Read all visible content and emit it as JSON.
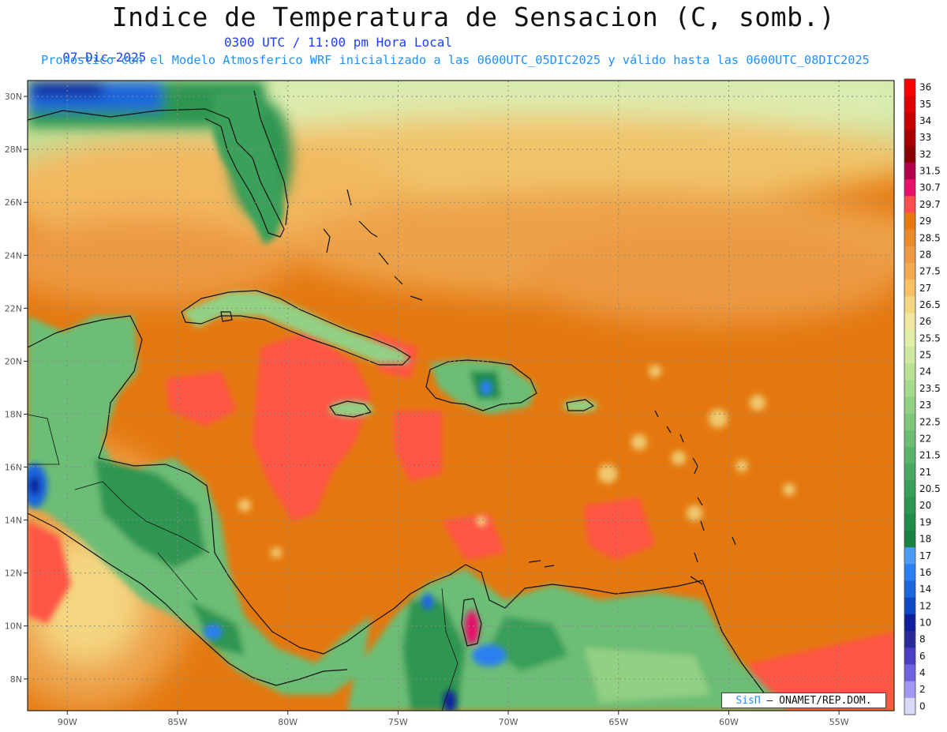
{
  "header": {
    "title": "Indice de Temperatura de Sensacion (C, somb.)",
    "date": "07–Dic–2025",
    "time": "0300 UTC / 11:00 pm Hora Local",
    "model_line": "Pronostico con el Modelo Atmosferico WRF inicializado a las 0600UTC_05DIC2025 y válido hasta las  0600UTC_08DIC2025"
  },
  "map": {
    "lat_labels": [
      "30N",
      "28N",
      "26N",
      "24N",
      "22N",
      "20N",
      "18N",
      "16N",
      "14N",
      "12N",
      "10N",
      "8N"
    ],
    "lat_values": [
      30,
      28,
      26,
      24,
      22,
      20,
      18,
      16,
      14,
      12,
      10,
      8
    ],
    "lon_labels": [
      "90W",
      "85W",
      "80W",
      "75W",
      "70W",
      "65W",
      "60W",
      "55W"
    ],
    "lon_values": [
      -90,
      -85,
      -80,
      -75,
      -70,
      -65,
      -60,
      -55
    ],
    "lon_range": [
      -91.8,
      -52.5
    ],
    "lat_range": [
      6.8,
      30.6
    ]
  },
  "colorbar": {
    "labels": [
      "36",
      "35",
      "34",
      "33",
      "32",
      "31.5",
      "30.7",
      "29.7",
      "29",
      "28.5",
      "28",
      "27.5",
      "27",
      "26.5",
      "26",
      "25.5",
      "25",
      "24",
      "23.5",
      "23",
      "22.5",
      "22",
      "21.5",
      "21",
      "20.5",
      "20",
      "19",
      "18",
      "17",
      "16",
      "14",
      "12",
      "10",
      "8",
      "6",
      "4",
      "2",
      "0"
    ],
    "colors": [
      "#ff0000",
      "#e00000",
      "#c80000",
      "#aa0000",
      "#8b0000",
      "#b4004a",
      "#e8106a",
      "#ff4d4d",
      "#e57a10",
      "#ea8a2c",
      "#ef9a42",
      "#f4aa4e",
      "#f7c060",
      "#f2d880",
      "#f1e9a0",
      "#e2efa9",
      "#cdeaa0",
      "#b9e196",
      "#a5d98c",
      "#92d084",
      "#7fc77c",
      "#6cbd74",
      "#58b36b",
      "#48a962",
      "#389f59",
      "#2d9651",
      "#1f8c49",
      "#178243",
      "#4a9cf5",
      "#2b80f0",
      "#1a66dd",
      "#0f48c4",
      "#10209c",
      "#2a2a9a",
      "#4b3ec0",
      "#6f62de",
      "#a098f2",
      "#d8d8f8"
    ]
  },
  "credit": {
    "brand": "SisΠ",
    "text": "– ONAMET/REP.DOM."
  }
}
